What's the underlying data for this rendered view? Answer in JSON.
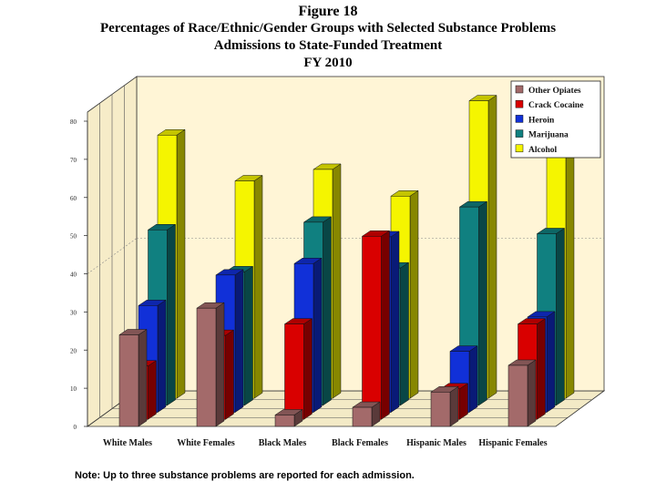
{
  "figure_label": "Figure 18",
  "title_line_1": "Percentages of Race/Ethnic/Gender Groups with Selected Substance Problems",
  "title_line_2": "Admissions to State-Funded Treatment",
  "title_line_3": "FY 2010",
  "note": "Note: Up to three substance problems are reported for each admission.",
  "colors": {
    "plot_background": "#fff5d6",
    "Other Opiates": "#a36a6a",
    "Crack Cocaine": "#d90000",
    "Heroin": "#1130d8",
    "Marijuana": "#108080",
    "Alcohol": "#f5f500"
  },
  "chart_data": {
    "type": "bar",
    "style": "3d-grouped",
    "title": "Percentages of Race/Ethnic/Gender Groups with Selected Substance Problems",
    "xlabel": "",
    "ylabel": "",
    "ylim": [
      0,
      80
    ],
    "yticks": [
      "0",
      "10",
      "20",
      "30",
      "40",
      "50",
      "60",
      "70",
      "80"
    ],
    "categories": [
      "White Males",
      "White Females",
      "Black Males",
      "Black Females",
      "Hispanic Males",
      "Hispanic Females"
    ],
    "series": [
      {
        "name": "Other Opiates",
        "values": [
          24,
          31,
          3,
          5,
          9,
          16
        ]
      },
      {
        "name": "Crack Cocaine",
        "values": [
          14,
          22,
          25,
          48,
          8,
          25
        ]
      },
      {
        "name": "Heroin",
        "values": [
          28,
          36,
          39,
          46,
          16,
          25
        ]
      },
      {
        "name": "Marijuana",
        "values": [
          46,
          35,
          48,
          36,
          52,
          45
        ]
      },
      {
        "name": "Alcohol",
        "values": [
          69,
          57,
          60,
          53,
          78,
          64
        ]
      }
    ],
    "legend_order": [
      "Other Opiates",
      "Crack Cocaine",
      "Heroin",
      "Marijuana",
      "Alcohol"
    ],
    "legend_position": "top-right"
  }
}
